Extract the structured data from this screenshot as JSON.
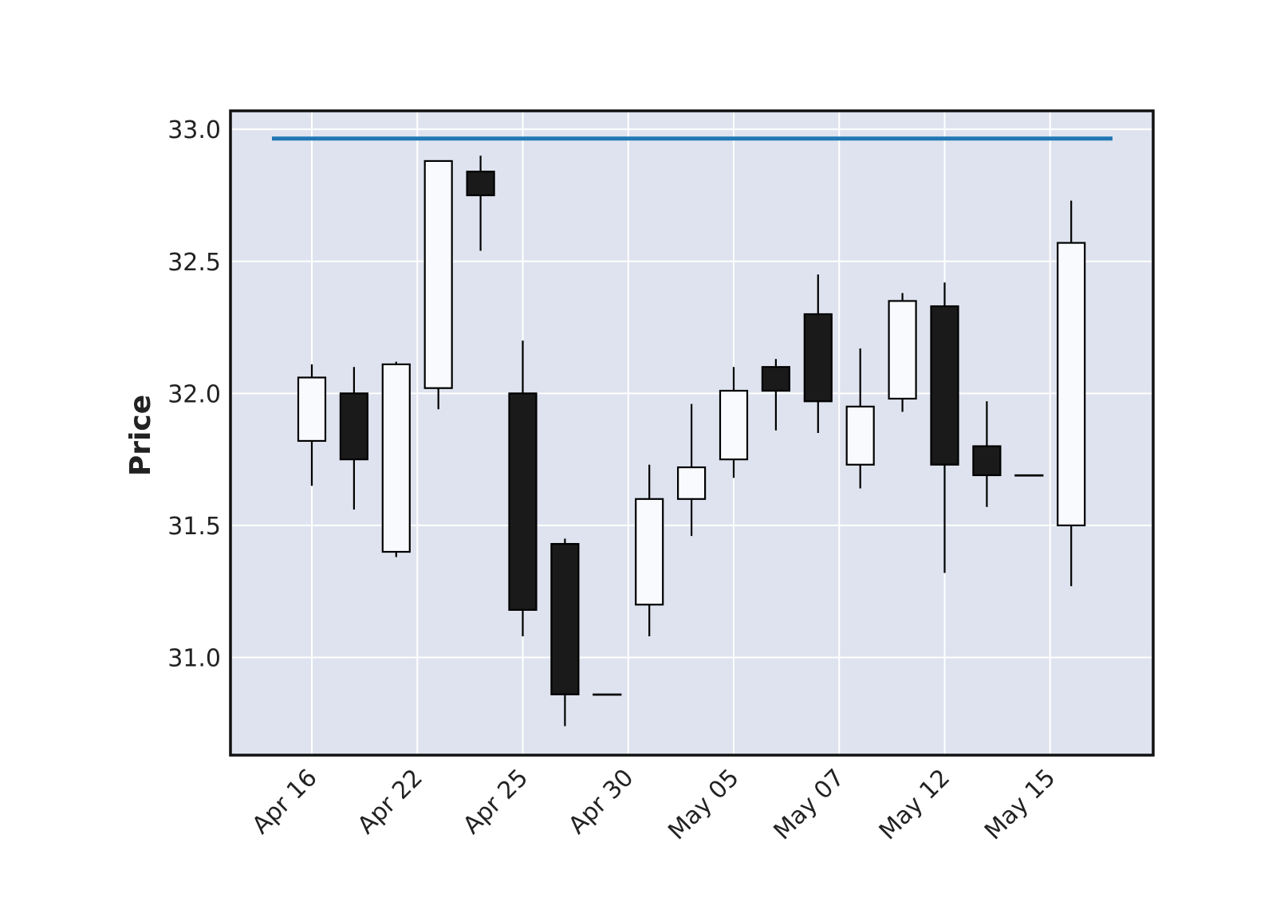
{
  "chart_data": {
    "type": "candlestick",
    "ylabel": "Price",
    "ylim": [
      30.63,
      33.07
    ],
    "yticks": [
      "33.0",
      "32.5",
      "32.0",
      "31.5",
      "31.0"
    ],
    "ytick_values": [
      33.0,
      32.5,
      32.0,
      31.5,
      31.0
    ],
    "xtick_labels": [
      "Apr 16",
      "Apr 22",
      "Apr 25",
      "Apr 30",
      "May 05",
      "May 07",
      "May 12",
      "May 15"
    ],
    "xtick_indices": [
      0,
      2.5,
      5,
      7.5,
      10,
      12.5,
      15,
      17.5
    ],
    "candles": [
      {
        "open": 31.82,
        "high": 32.11,
        "low": 31.65,
        "close": 32.06
      },
      {
        "open": 32.0,
        "high": 32.1,
        "low": 31.56,
        "close": 31.75
      },
      {
        "open": 31.4,
        "high": 32.12,
        "low": 31.38,
        "close": 32.11
      },
      {
        "open": 32.02,
        "high": 32.88,
        "low": 31.94,
        "close": 32.88
      },
      {
        "open": 32.84,
        "high": 32.9,
        "low": 32.54,
        "close": 32.75
      },
      {
        "open": 32.0,
        "high": 32.2,
        "low": 31.08,
        "close": 31.18
      },
      {
        "open": 31.43,
        "high": 31.45,
        "low": 30.74,
        "close": 30.86
      },
      {
        "open": 30.86,
        "high": 30.86,
        "low": 30.86,
        "close": 30.86
      },
      {
        "open": 31.2,
        "high": 31.73,
        "low": 31.08,
        "close": 31.6
      },
      {
        "open": 31.6,
        "high": 31.96,
        "low": 31.46,
        "close": 31.72
      },
      {
        "open": 31.75,
        "high": 32.1,
        "low": 31.68,
        "close": 32.01
      },
      {
        "open": 32.1,
        "high": 32.13,
        "low": 31.86,
        "close": 32.01
      },
      {
        "open": 32.3,
        "high": 32.45,
        "low": 31.85,
        "close": 31.97
      },
      {
        "open": 31.73,
        "high": 32.17,
        "low": 31.64,
        "close": 31.95
      },
      {
        "open": 31.98,
        "high": 32.38,
        "low": 31.93,
        "close": 32.35
      },
      {
        "open": 32.33,
        "high": 32.42,
        "low": 31.32,
        "close": 31.73
      },
      {
        "open": 31.8,
        "high": 31.97,
        "low": 31.57,
        "close": 31.69
      },
      {
        "open": 31.69,
        "high": 31.69,
        "low": 31.69,
        "close": 31.69
      },
      {
        "open": 31.5,
        "high": 32.73,
        "low": 31.27,
        "close": 32.57
      }
    ],
    "hline": {
      "value": 32.965,
      "color": "#1f77b4"
    },
    "grid": true,
    "colors": {
      "background": "#dee3ef",
      "grid": "#ffffff",
      "up_fill": "#f8fafd",
      "down_fill": "#1a1a1a",
      "edge": "#000000"
    }
  }
}
